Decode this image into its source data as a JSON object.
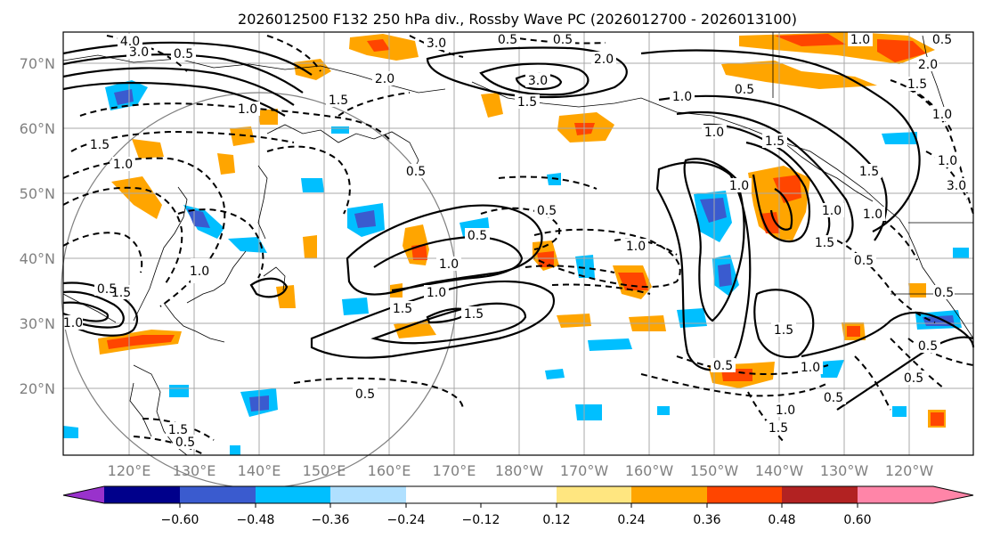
{
  "title": "2026012500 F132 250 hPa div., Rossby Wave PC (2026012700 - 2026013100)",
  "lat_labels": [
    "70°N",
    "60°N",
    "50°N",
    "40°N",
    "30°N",
    "20°N"
  ],
  "lon_labels": [
    "120°E",
    "130°E",
    "140°E",
    "150°E",
    "160°E",
    "170°E",
    "180°W",
    "170°W",
    "160°W",
    "150°W",
    "140°W",
    "130°W",
    "120°W"
  ],
  "colorbar": {
    "colors": [
      "#9932cc",
      "#00008b",
      "#3a5bcf",
      "#00bfff",
      "#b0e0ff",
      "#ffffff",
      "#ffe680",
      "#ffa500",
      "#ff4500",
      "#b22222",
      "#ff85a8"
    ],
    "tick_labels": [
      "−0.60",
      "−0.48",
      "−0.36",
      "−0.24",
      "−0.12",
      "0.12",
      "0.24",
      "0.36",
      "0.48",
      "0.60"
    ]
  },
  "contour_labels": {
    "c1": "4.0",
    "c2": "3.0",
    "c3": "2.0",
    "c4": "0.5",
    "c5": "3.0",
    "c6": "0.5",
    "c7": "0.5",
    "c8": "2.0",
    "c9": "3.0",
    "c10": "1.0",
    "c11": "0.5",
    "c12": "1.0",
    "c13": "1.0",
    "c14": "1.5",
    "c15": "1.0",
    "c16": "1.5",
    "c17": "1.0",
    "c18": "0.5",
    "c19": "1.0",
    "c20": "1.5",
    "c21": "1.5",
    "c22": "0.5",
    "c23": "1.0",
    "c24": "0.5",
    "c25": "1.0",
    "c26": "1.5",
    "c27": "1.0",
    "c28": "0.5",
    "c29": "1.0",
    "c30": "1.5",
    "c31": "1.5",
    "c32": "0.5",
    "c33": "2.0",
    "c34": "3.0",
    "c35": "1.5",
    "c36": "0.5",
    "c37": "1.0",
    "c38": "0.5",
    "c39": "1.5",
    "c40": "0.5",
    "c41": "1.5",
    "c42": "1.0",
    "c43": "1.0",
    "c44": "1.0",
    "c45": "1.5",
    "c46": "0.5",
    "c47": "1.0",
    "c48": "0.5",
    "c49": "1.5",
    "c50": "0.5",
    "c51": "0.5",
    "c52": "1.0",
    "c53": "1.0",
    "c54": "1.5",
    "c55": "0.5"
  }
}
